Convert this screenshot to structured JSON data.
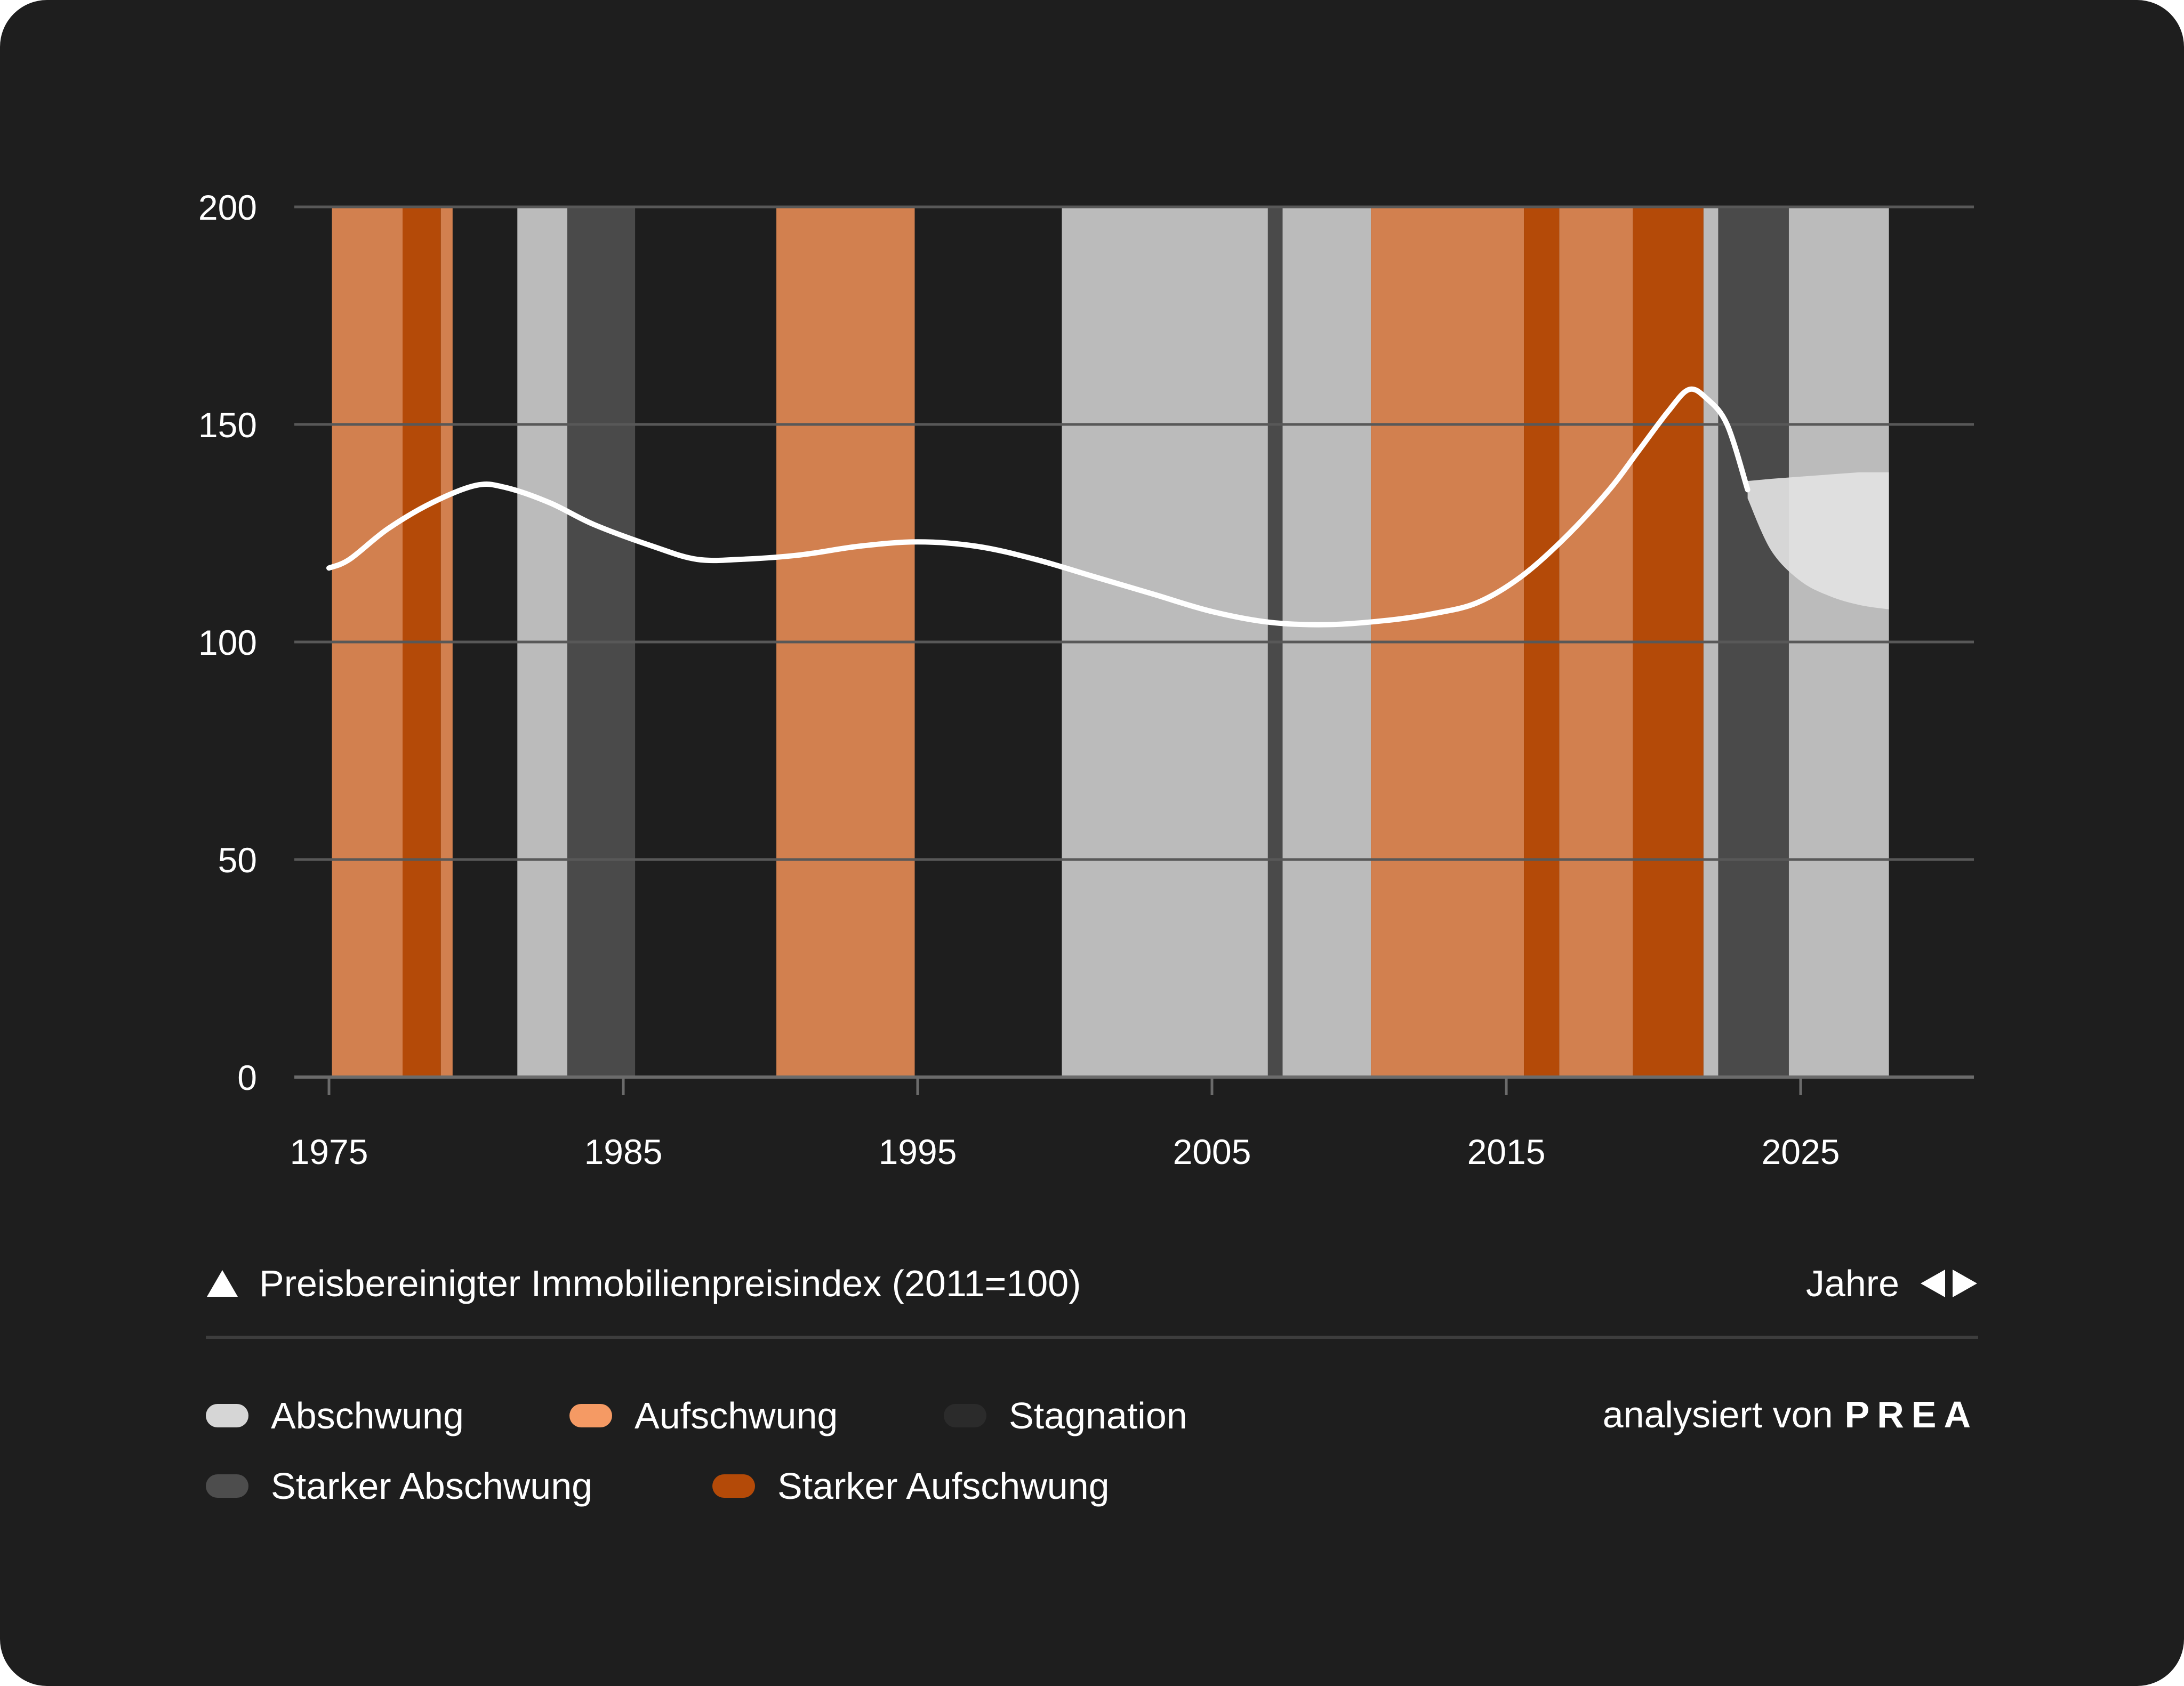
{
  "chart_data": {
    "type": "line",
    "title": "",
    "series_label": "Preisbereinigter Immobilienpreisindex (2011=100)",
    "xlabel": "Jahre",
    "ylabel": "",
    "xlim": [
      1975,
      2031
    ],
    "ylim": [
      0,
      200
    ],
    "y_ticks": [
      0,
      50,
      100,
      150,
      200
    ],
    "x_ticks": [
      1975,
      1985,
      1995,
      2005,
      2015,
      2025
    ],
    "grid": true,
    "series": [
      {
        "name": "Preisbereinigter Immobilienpreisindex (2011=100)",
        "color": "#ffffff",
        "x": [
          1975,
          1975.7,
          1977,
          1978.5,
          1980,
          1981,
          1982.5,
          1984,
          1986,
          1987.5,
          1989,
          1991,
          1993,
          1995,
          1997,
          1999,
          2001,
          2003,
          2005,
          2007,
          2009,
          2011,
          2012.5,
          2014,
          2015.5,
          2017,
          2018.5,
          2019.5,
          2020.5,
          2021.2,
          2021.8,
          2022.5,
          2023.2
        ],
        "values": [
          117,
          119,
          126,
          132,
          136,
          135.5,
          132,
          127,
          122,
          119,
          119,
          120,
          122,
          123,
          122,
          119,
          115,
          111,
          107,
          104.5,
          104,
          105,
          106.5,
          109,
          115,
          124,
          135,
          144,
          153,
          158,
          156,
          150,
          135
        ]
      }
    ],
    "forecast": {
      "x": [
        2023.2,
        2024,
        2025,
        2026,
        2027,
        2028
      ],
      "upper": [
        137,
        137.5,
        138,
        138.5,
        139,
        139
      ],
      "lower": [
        133,
        121,
        114,
        110.5,
        108.5,
        107.5
      ]
    },
    "phases": [
      {
        "start": 1975.1,
        "end": 1977.5,
        "type": "aufschwung"
      },
      {
        "start": 1977.5,
        "end": 1978.8,
        "type": "starker_aufschwung"
      },
      {
        "start": 1978.8,
        "end": 1979.2,
        "type": "aufschwung"
      },
      {
        "start": 1981.4,
        "end": 1983.1,
        "type": "abschwung"
      },
      {
        "start": 1983.1,
        "end": 1985.4,
        "type": "starker_abschwung"
      },
      {
        "start": 1990.2,
        "end": 1994.9,
        "type": "aufschwung"
      },
      {
        "start": 1999.9,
        "end": 2006.9,
        "type": "abschwung"
      },
      {
        "start": 2006.9,
        "end": 2007.4,
        "type": "starker_abschwung"
      },
      {
        "start": 2007.4,
        "end": 2010.4,
        "type": "abschwung"
      },
      {
        "start": 2010.4,
        "end": 2015.6,
        "type": "aufschwung"
      },
      {
        "start": 2015.6,
        "end": 2016.8,
        "type": "starker_aufschwung"
      },
      {
        "start": 2016.8,
        "end": 2019.3,
        "type": "aufschwung"
      },
      {
        "start": 2019.3,
        "end": 2021.7,
        "type": "starker_aufschwung"
      },
      {
        "start": 2021.7,
        "end": 2022.2,
        "type": "abschwung"
      },
      {
        "start": 2022.2,
        "end": 2024.6,
        "type": "starker_abschwung"
      },
      {
        "start": 2024.6,
        "end": 2028.0,
        "type": "abschwung"
      }
    ],
    "phase_colors": {
      "abschwung": "#bbbbbb",
      "aufschwung": "#d2804f",
      "stagnation": "#2b2b2b",
      "starker_abschwung": "#4a4a4a",
      "starker_aufschwung": "#b44a08"
    },
    "legend": [
      {
        "key": "abschwung",
        "label": "Abschwung",
        "color": "#d6d6d6"
      },
      {
        "key": "aufschwung",
        "label": "Aufschwung",
        "color": "#f59a64"
      },
      {
        "key": "stagnation",
        "label": "Stagnation",
        "color": "#2b2b2b"
      },
      {
        "key": "starker_abschwung",
        "label": "Starker Abschwung",
        "color": "#4d4d4d"
      },
      {
        "key": "starker_aufschwung",
        "label": "Starker Aufschwung",
        "color": "#b44a08"
      }
    ],
    "legend_placement": "bottom"
  },
  "footer": {
    "credit_prefix": "analysiert von",
    "credit_brand": "PREA"
  },
  "colors": {
    "background": "#1e1e1e",
    "gridline": "#585858",
    "text": "#ffffff"
  }
}
